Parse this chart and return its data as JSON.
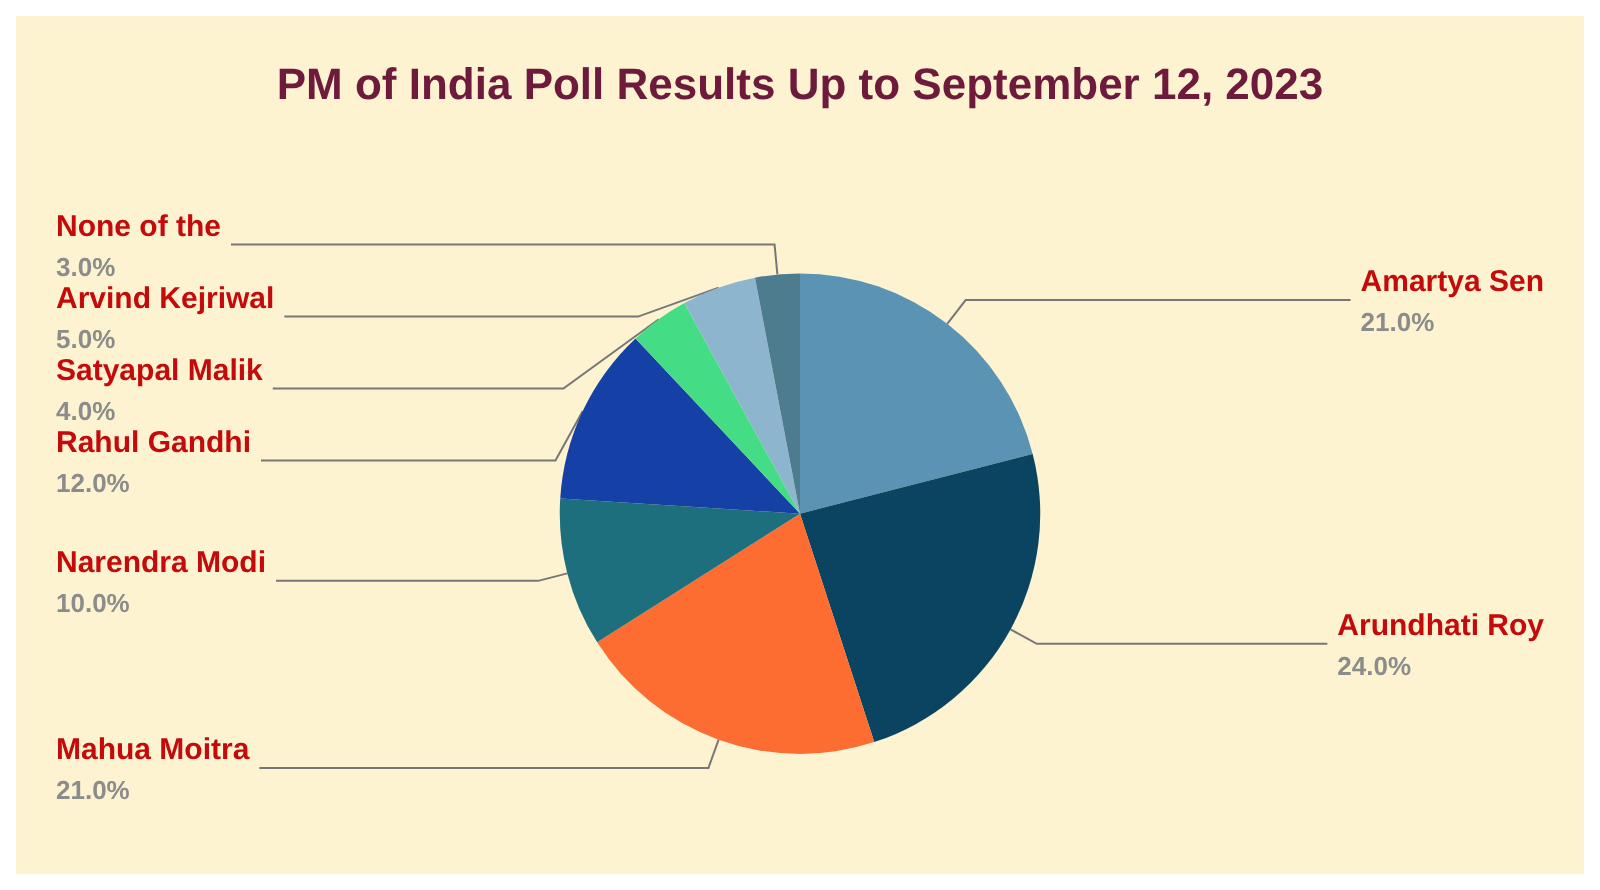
{
  "chart_data": {
    "type": "pie",
    "title": "PM of India Poll Results Up to September 12, 2023",
    "categories": [
      "Amartya Sen",
      "Arundhati Roy",
      "Mahua Moitra",
      "Narendra Modi",
      "Rahul Gandhi",
      "Satyapal Malik",
      "Arvind Kejriwal",
      "None of the"
    ],
    "values": [
      21,
      24,
      21,
      10,
      12,
      4,
      5,
      3
    ],
    "value_labels": [
      "21.0%",
      "24.0%",
      "21.0%",
      "10.0%",
      "12.0%",
      "4.0%",
      "5.0%",
      "3.0%"
    ],
    "colors": [
      "#5a93b4",
      "#0b4460",
      "#fd6c31",
      "#1e6f7e",
      "#1541a6",
      "#44dd86",
      "#8db5cd",
      "#4e7c8f"
    ],
    "legend": false
  }
}
